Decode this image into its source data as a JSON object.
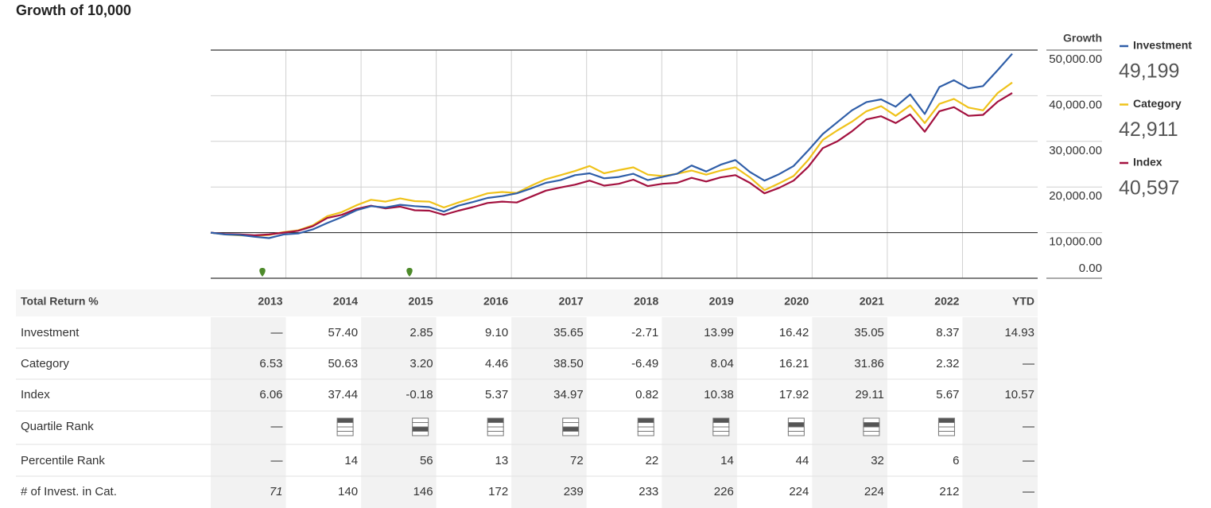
{
  "title": "Growth of 10,000",
  "chart_data": {
    "type": "line",
    "y_axis_title": "Growth",
    "ylim": [
      0,
      50000
    ],
    "baseline": 10000,
    "yticks": [
      {
        "value": 0,
        "label": "0.00"
      },
      {
        "value": 10000,
        "label": "10,000.00"
      },
      {
        "value": 20000,
        "label": "20,000.00"
      },
      {
        "value": 30000,
        "label": "30,000.00"
      },
      {
        "value": 40000,
        "label": "40,000.00"
      },
      {
        "value": 50000,
        "label": "50,000.00"
      }
    ],
    "series": [
      {
        "name": "Investment",
        "color": "#2f5ea8",
        "ending_value": {
          "value": 49199,
          "label": "49,199"
        },
        "values": [
          10000,
          9600,
          9500,
          9100,
          8800,
          9600,
          9800,
          10700,
          12100,
          13400,
          14900,
          15800,
          15500,
          16100,
          15800,
          15600,
          14600,
          15900,
          16700,
          17600,
          18000,
          18600,
          19700,
          20900,
          21500,
          22600,
          23000,
          21900,
          22200,
          22900,
          21500,
          22200,
          22900,
          24700,
          23400,
          24900,
          25900,
          23300,
          21400,
          22800,
          24600,
          28000,
          31600,
          34200,
          36800,
          38600,
          39200,
          37600,
          40300,
          36000,
          41900,
          43400,
          41600,
          42100,
          45600,
          49200
        ]
      },
      {
        "name": "Category",
        "color": "#efc21a",
        "ending_value": {
          "value": 42911,
          "label": "42,911"
        },
        "values": [
          10000,
          9600,
          9400,
          9300,
          9500,
          10100,
          10500,
          11600,
          13600,
          14500,
          16000,
          17200,
          16800,
          17500,
          16900,
          16800,
          15500,
          16600,
          17600,
          18600,
          18900,
          18700,
          20300,
          21700,
          22600,
          23500,
          24600,
          23000,
          23700,
          24300,
          22700,
          22400,
          22900,
          23600,
          22700,
          23600,
          24300,
          22100,
          19300,
          20800,
          22400,
          25900,
          30300,
          32400,
          34300,
          36600,
          37700,
          35600,
          37900,
          34000,
          38200,
          39300,
          37400,
          36800,
          40600,
          42900
        ]
      },
      {
        "name": "Index",
        "color": "#a3113f",
        "ending_value": {
          "value": 40597,
          "label": "40,597"
        },
        "values": [
          10000,
          9700,
          9600,
          9400,
          9600,
          10000,
          10400,
          11400,
          13200,
          13900,
          15200,
          15900,
          15300,
          15700,
          14900,
          14800,
          13900,
          14800,
          15600,
          16500,
          16800,
          16600,
          17900,
          19200,
          19900,
          20500,
          21400,
          20300,
          20700,
          21600,
          20200,
          20700,
          20900,
          22000,
          21200,
          22100,
          22600,
          20900,
          18600,
          19800,
          21400,
          24400,
          28500,
          30000,
          32200,
          34800,
          35500,
          34000,
          35900,
          32100,
          36600,
          37500,
          35600,
          35800,
          38700,
          40600
        ]
      }
    ]
  },
  "table": {
    "header": [
      "Total Return %",
      "2013",
      "2014",
      "2015",
      "2016",
      "2017",
      "2018",
      "2019",
      "2020",
      "2021",
      "2022",
      "YTD"
    ],
    "rows": [
      {
        "label": "Investment",
        "cells": [
          "—",
          "57.40",
          "2.85",
          "9.10",
          "35.65",
          "-2.71",
          "13.99",
          "16.42",
          "35.05",
          "8.37",
          "14.93"
        ]
      },
      {
        "label": "Category",
        "cells": [
          "6.53",
          "50.63",
          "3.20",
          "4.46",
          "38.50",
          "-6.49",
          "8.04",
          "16.21",
          "31.86",
          "2.32",
          "—"
        ]
      },
      {
        "label": "Index",
        "cells": [
          "6.06",
          "37.44",
          "-0.18",
          "5.37",
          "34.97",
          "0.82",
          "10.38",
          "17.92",
          "29.11",
          "5.67",
          "10.57"
        ]
      },
      {
        "label": "Quartile Rank",
        "cells": [
          "—",
          1,
          3,
          1,
          3,
          1,
          1,
          2,
          2,
          1,
          "—"
        ]
      },
      {
        "label": "Percentile Rank",
        "cells": [
          "—",
          "14",
          "56",
          "13",
          "72",
          "22",
          "14",
          "44",
          "32",
          "6",
          "—"
        ]
      },
      {
        "label": "# of Invest. in Cat.",
        "cells": [
          "71",
          "140",
          "146",
          "172",
          "239",
          "233",
          "226",
          "224",
          "224",
          "212",
          "—"
        ]
      }
    ]
  }
}
